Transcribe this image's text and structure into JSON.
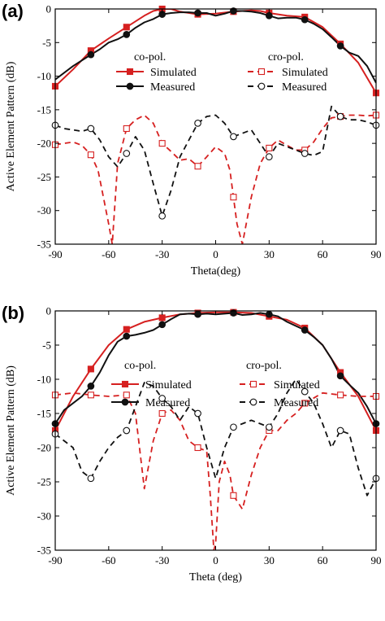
{
  "figure": {
    "colors": {
      "red": "#d62020",
      "black": "#111111"
    }
  },
  "chart_data": [
    {
      "panel_label": "(a)",
      "type": "line",
      "xlabel": "Theta(deg)",
      "ylabel": "Active Element Pattern (dB)",
      "xlim": [
        -90,
        90
      ],
      "ylim": [
        -35,
        0
      ],
      "xticks": [
        -90,
        -60,
        -30,
        0,
        30,
        60,
        90
      ],
      "yticks": [
        0,
        -5,
        -10,
        -15,
        -20,
        -25,
        -30,
        -35
      ],
      "legend": {
        "co_heading": "co-pol.",
        "cro_heading": "cro-pol."
      },
      "series": [
        {
          "name": "Simulated",
          "group": "co-pol.",
          "color": "#d62020",
          "style": "solid",
          "marker": "filled-square",
          "x": [
            -90,
            -80,
            -70,
            -60,
            -50,
            -40,
            -35,
            -30,
            -25,
            -20,
            -10,
            0,
            10,
            20,
            25,
            30,
            40,
            50,
            60,
            70,
            80,
            90
          ],
          "y": [
            -11.5,
            -9,
            -6.2,
            -4.4,
            -2.7,
            -1.0,
            -0.3,
            0,
            0,
            -0.4,
            -0.8,
            -0.7,
            -0.4,
            -0.2,
            -0.3,
            -0.6,
            -1.0,
            -1.2,
            -2.7,
            -5.2,
            -8.0,
            -12.5
          ],
          "marker_x": [
            -90,
            -70,
            -50,
            -30,
            -10,
            10,
            30,
            50,
            70,
            90
          ]
        },
        {
          "name": "Measured",
          "group": "co-pol.",
          "color": "#111111",
          "style": "solid",
          "marker": "filled-circle",
          "x": [
            -90,
            -80,
            -70,
            -65,
            -60,
            -55,
            -50,
            -45,
            -40,
            -35,
            -30,
            -25,
            -20,
            -15,
            -10,
            -5,
            0,
            5,
            10,
            15,
            20,
            25,
            30,
            35,
            40,
            45,
            50,
            55,
            60,
            65,
            70,
            75,
            80,
            85,
            90
          ],
          "y": [
            -10.5,
            -8.5,
            -6.8,
            -6.0,
            -5.0,
            -4.5,
            -3.8,
            -2.8,
            -2.0,
            -1.5,
            -0.8,
            -0.6,
            -0.5,
            -0.5,
            -0.6,
            -0.6,
            -1.0,
            -0.7,
            -0.3,
            -0.3,
            -0.4,
            -0.6,
            -1.0,
            -1.4,
            -1.3,
            -1.3,
            -1.6,
            -2.2,
            -3.0,
            -4.2,
            -5.5,
            -6.5,
            -7.0,
            -8.5,
            -11.0
          ],
          "marker_x": [
            -70,
            -50,
            -30,
            -10,
            10,
            30,
            50,
            70
          ]
        },
        {
          "name": "Simulated",
          "group": "cro-pol.",
          "color": "#d62020",
          "style": "dashed",
          "marker": "open-square",
          "x": [
            -90,
            -80,
            -75,
            -70,
            -66,
            -63,
            -60,
            -58,
            -55,
            -50,
            -45,
            -40,
            -35,
            -30,
            -25,
            -20,
            -15,
            -10,
            -5,
            0,
            5,
            8,
            10,
            12,
            15,
            20,
            25,
            30,
            35,
            40,
            45,
            50,
            55,
            60,
            65,
            70,
            75,
            80,
            85,
            90
          ],
          "y": [
            -20.2,
            -19.8,
            -20.3,
            -21.7,
            -24.0,
            -28.0,
            -32.0,
            -35.0,
            -23.0,
            -17.8,
            -16.5,
            -15.8,
            -17.0,
            -20.0,
            -21.2,
            -22.5,
            -22.3,
            -23.4,
            -22.0,
            -20.5,
            -21.5,
            -24.0,
            -28.0,
            -32.0,
            -35.0,
            -28.0,
            -23.0,
            -20.7,
            -19.5,
            -20.3,
            -21.0,
            -21.0,
            -19.8,
            -17.8,
            -16.2,
            -16.0,
            -15.8,
            -15.8,
            -15.9,
            -15.8
          ],
          "marker_x": [
            -90,
            -70,
            -50,
            -30,
            -10,
            10,
            30,
            50,
            70,
            90
          ]
        },
        {
          "name": "Measured",
          "group": "cro-pol.",
          "color": "#111111",
          "style": "dashed",
          "marker": "open-circle",
          "x": [
            -90,
            -85,
            -80,
            -75,
            -70,
            -65,
            -60,
            -55,
            -50,
            -45,
            -40,
            -35,
            -30,
            -25,
            -20,
            -15,
            -10,
            -5,
            0,
            5,
            10,
            15,
            20,
            25,
            30,
            35,
            40,
            45,
            50,
            55,
            60,
            65,
            70,
            75,
            80,
            85,
            90
          ],
          "y": [
            -17.3,
            -17.8,
            -18.0,
            -18.2,
            -17.8,
            -19.5,
            -22.0,
            -23.5,
            -21.5,
            -19.0,
            -21.0,
            -26.0,
            -30.8,
            -27.0,
            -22.0,
            -19.5,
            -17.0,
            -16.0,
            -15.8,
            -17.0,
            -19.0,
            -18.5,
            -18.0,
            -20.0,
            -22.0,
            -20.0,
            -20.5,
            -21.0,
            -21.5,
            -21.8,
            -21.2,
            -14.5,
            -16.0,
            -16.5,
            -16.5,
            -16.8,
            -17.3
          ],
          "marker_x": [
            -90,
            -70,
            -50,
            -30,
            -10,
            10,
            30,
            50,
            70,
            90
          ]
        }
      ]
    },
    {
      "panel_label": "(b)",
      "type": "line",
      "xlabel": "Theta (deg)",
      "ylabel": "Active Element Pattern (dB)",
      "xlim": [
        -90,
        90
      ],
      "ylim": [
        -35,
        0
      ],
      "xticks": [
        -90,
        -60,
        -30,
        0,
        30,
        60,
        90
      ],
      "yticks": [
        0,
        -5,
        -10,
        -15,
        -20,
        -25,
        -30,
        -35
      ],
      "legend": {
        "co_heading": "co-pol.",
        "cro_heading": "cro-pol."
      },
      "series": [
        {
          "name": "Simulated",
          "group": "co-pol.",
          "color": "#d62020",
          "style": "solid",
          "marker": "filled-square",
          "x": [
            -90,
            -80,
            -70,
            -60,
            -50,
            -40,
            -30,
            -20,
            -10,
            0,
            10,
            20,
            30,
            40,
            50,
            60,
            70,
            80,
            90
          ],
          "y": [
            -17.5,
            -12.5,
            -8.5,
            -5.0,
            -2.7,
            -1.6,
            -1.0,
            -0.5,
            -0.3,
            -0.2,
            -0.2,
            -0.3,
            -0.8,
            -1.3,
            -2.5,
            -5.0,
            -9.0,
            -12.5,
            -17.5
          ],
          "marker_x": [
            -90,
            -70,
            -50,
            -30,
            -10,
            10,
            30,
            50,
            70,
            90
          ]
        },
        {
          "name": "Measured",
          "group": "co-pol.",
          "color": "#111111",
          "style": "solid",
          "marker": "filled-circle",
          "x": [
            -90,
            -85,
            -80,
            -75,
            -70,
            -65,
            -60,
            -55,
            -50,
            -45,
            -40,
            -35,
            -30,
            -25,
            -20,
            -15,
            -10,
            -5,
            0,
            5,
            10,
            15,
            20,
            25,
            30,
            35,
            40,
            45,
            50,
            55,
            60,
            65,
            70,
            75,
            80,
            85,
            90
          ],
          "y": [
            -16.5,
            -14.5,
            -13.5,
            -12.5,
            -11.0,
            -9.0,
            -6.5,
            -4.5,
            -3.7,
            -3.5,
            -3.2,
            -2.8,
            -2.0,
            -1.2,
            -0.5,
            -0.4,
            -0.5,
            -0.4,
            -0.5,
            -0.4,
            -0.3,
            -0.6,
            -0.5,
            -0.3,
            -0.5,
            -0.8,
            -1.6,
            -2.2,
            -2.8,
            -3.8,
            -5.0,
            -7.0,
            -9.5,
            -10.8,
            -12.0,
            -14.0,
            -16.5
          ],
          "marker_x": [
            -90,
            -70,
            -50,
            -30,
            -10,
            10,
            30,
            50,
            70,
            90
          ]
        },
        {
          "name": "Simulated",
          "group": "cro-pol.",
          "color": "#d62020",
          "style": "dashed",
          "marker": "open-square",
          "x": [
            -90,
            -80,
            -70,
            -60,
            -50,
            -45,
            -40,
            -35,
            -30,
            -25,
            -20,
            -15,
            -10,
            -5,
            -3,
            -1,
            0,
            2,
            5,
            8,
            10,
            15,
            20,
            25,
            30,
            35,
            40,
            45,
            50,
            60,
            70,
            80,
            90
          ],
          "y": [
            -12.3,
            -12.0,
            -12.3,
            -12.5,
            -12.3,
            -15.0,
            -26.0,
            -19.0,
            -15.0,
            -14.5,
            -16.0,
            -19.0,
            -20.0,
            -20.5,
            -27.0,
            -35.0,
            -34.0,
            -25.0,
            -22.0,
            -24.0,
            -27.0,
            -29.0,
            -24.0,
            -20.0,
            -17.5,
            -17.5,
            -16.0,
            -15.0,
            -13.5,
            -12.0,
            -12.3,
            -12.5,
            -12.5
          ],
          "marker_x": [
            -90,
            -70,
            -50,
            -30,
            -10,
            10,
            30,
            50,
            70,
            90
          ]
        },
        {
          "name": "Measured",
          "group": "cro-pol.",
          "color": "#111111",
          "style": "dashed",
          "marker": "open-circle",
          "x": [
            -90,
            -80,
            -75,
            -70,
            -65,
            -60,
            -55,
            -50,
            -45,
            -40,
            -35,
            -30,
            -25,
            -20,
            -15,
            -10,
            -5,
            0,
            5,
            10,
            15,
            20,
            25,
            30,
            35,
            40,
            45,
            50,
            55,
            60,
            65,
            70,
            75,
            80,
            85,
            90
          ],
          "y": [
            -18.0,
            -20.0,
            -23.5,
            -24.5,
            -22.0,
            -20.0,
            -18.5,
            -17.5,
            -14.0,
            -10.5,
            -11.0,
            -12.8,
            -14.0,
            -16.0,
            -14.0,
            -15.0,
            -20.0,
            -24.5,
            -20.0,
            -17.0,
            -16.5,
            -16.0,
            -16.5,
            -17.0,
            -15.0,
            -12.0,
            -10.0,
            -11.8,
            -13.5,
            -16.5,
            -20.0,
            -17.5,
            -18.0,
            -23.0,
            -27.0,
            -24.5
          ],
          "marker_x": [
            -90,
            -70,
            -50,
            -30,
            -10,
            10,
            30,
            50,
            70,
            90
          ]
        }
      ]
    }
  ]
}
